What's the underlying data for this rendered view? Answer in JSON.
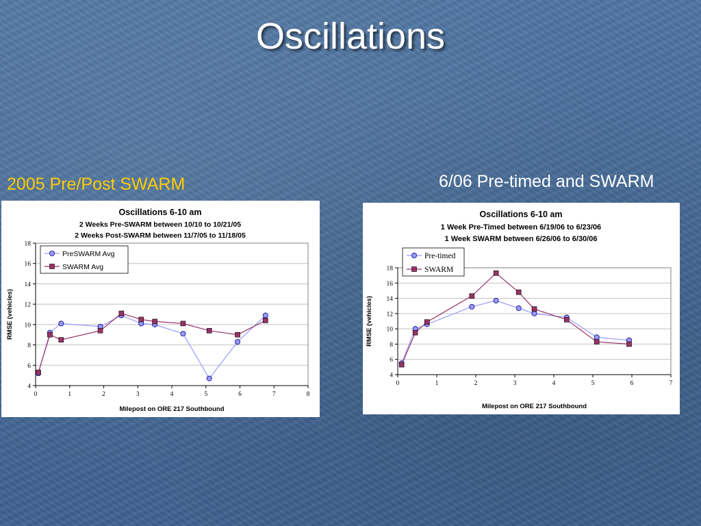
{
  "slide": {
    "title": "Oscillations",
    "caption_left": "2005 Pre/Post SWARM",
    "caption_right": "6/06 Pre-timed and SWARM"
  },
  "chart_data": [
    {
      "type": "line",
      "title": "Oscillations 6-10 am",
      "subtitle": [
        "2 Weeks Pre-SWARM between 10/10 to 10/21/05",
        "2 Weeks Post-SWARM between 11/7/05 to 11/18/05"
      ],
      "xlabel": "Milepost on ORE 217 Southbound",
      "ylabel": "RMSE (vehicles)",
      "xlim": [
        0,
        8
      ],
      "ylim": [
        4,
        18
      ],
      "xticks": [
        0,
        1,
        2,
        3,
        4,
        5,
        6,
        7,
        8
      ],
      "yticks": [
        4,
        6,
        8,
        10,
        12,
        14,
        16,
        18
      ],
      "grid": "horizontal",
      "legend": "top-left",
      "series": [
        {
          "name": "PreSWARM Avg",
          "marker": "circle",
          "line_color": "#9999ff",
          "marker_fill": "#9999ff",
          "points": [
            [
              0.08,
              5.2
            ],
            [
              0.42,
              9.2
            ],
            [
              0.75,
              10.1
            ],
            [
              1.9,
              9.8
            ],
            [
              2.52,
              10.9
            ],
            [
              3.1,
              10.1
            ],
            [
              3.5,
              10.0
            ],
            [
              4.33,
              9.1
            ],
            [
              5.1,
              4.7
            ],
            [
              5.93,
              8.3
            ],
            [
              6.75,
              10.9
            ]
          ]
        },
        {
          "name": "SWARM Avg",
          "marker": "square",
          "line_color": "#993366",
          "marker_fill": "#993366",
          "points": [
            [
              0.08,
              5.3
            ],
            [
              0.42,
              9.0
            ],
            [
              0.75,
              8.5
            ],
            [
              1.9,
              9.4
            ],
            [
              2.52,
              11.1
            ],
            [
              3.1,
              10.5
            ],
            [
              3.5,
              10.3
            ],
            [
              4.33,
              10.1
            ],
            [
              5.1,
              9.4
            ],
            [
              5.93,
              9.0
            ],
            [
              6.75,
              10.4
            ]
          ]
        }
      ]
    },
    {
      "type": "line",
      "title": "Oscillations 6-10 am",
      "subtitle": [
        "1 Week Pre-Timed between 6/19/06 to 6/23/06",
        "1 Week SWARM between 6/26/06 to 6/30/06"
      ],
      "xlabel": "Milepost on ORE 217 Southbound",
      "ylabel": "RMSE (vehicles)",
      "xlim": [
        0,
        7
      ],
      "ylim": [
        4,
        18
      ],
      "xticks": [
        0,
        1,
        2,
        3,
        4,
        5,
        6,
        7
      ],
      "yticks": [
        4,
        6,
        8,
        10,
        12,
        14,
        16,
        18
      ],
      "grid": "horizontal",
      "legend": "top-left",
      "series": [
        {
          "name": "Pre-timed",
          "marker": "circle",
          "line_color": "#9999ff",
          "marker_fill": "#9999ff",
          "points": [
            [
              0.1,
              5.5
            ],
            [
              0.45,
              10.0
            ],
            [
              0.75,
              10.6
            ],
            [
              1.9,
              12.9
            ],
            [
              2.52,
              13.7
            ],
            [
              3.1,
              12.7
            ],
            [
              3.5,
              12.0
            ],
            [
              4.33,
              11.5
            ],
            [
              5.1,
              8.9
            ],
            [
              5.93,
              8.5
            ]
          ]
        },
        {
          "name": "SWARM",
          "marker": "square",
          "line_color": "#993366",
          "marker_fill": "#993366",
          "points": [
            [
              0.1,
              5.3
            ],
            [
              0.45,
              9.5
            ],
            [
              0.75,
              10.9
            ],
            [
              1.9,
              14.3
            ],
            [
              2.52,
              17.3
            ],
            [
              3.1,
              14.8
            ],
            [
              3.5,
              12.6
            ],
            [
              4.33,
              11.2
            ],
            [
              5.1,
              8.3
            ],
            [
              5.93,
              8.0
            ]
          ]
        }
      ]
    }
  ]
}
